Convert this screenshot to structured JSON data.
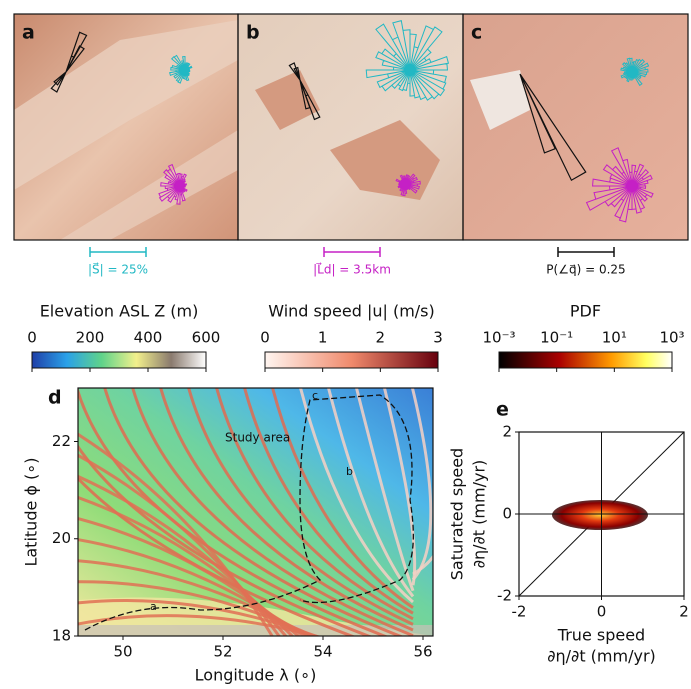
{
  "photo_panels": [
    {
      "label": "a"
    },
    {
      "label": "b"
    },
    {
      "label": "c"
    }
  ],
  "scale_bars": [
    "|S⃗| = 25%",
    "|L⃗d| = 3.5km",
    "P(∠q⃗) = 0.25"
  ],
  "colorbars": [
    {
      "title": "Elevation ASL Z (m)",
      "lim": [
        0,
        600
      ],
      "ticks": [
        0,
        200,
        400,
        600
      ]
    },
    {
      "title": "Wind speed |u| (m/s)",
      "lim": [
        0,
        3
      ],
      "ticks": [
        0,
        1,
        2,
        3
      ]
    },
    {
      "title": "PDF",
      "log": true,
      "lim": [
        0.001,
        1000
      ],
      "ticks": [
        {
          "value": 0.001,
          "label": "10⁻³"
        },
        {
          "value": 0.1,
          "label": "10⁻¹"
        },
        {
          "value": 10,
          "label": "10¹"
        },
        {
          "value": 1000,
          "label": "10³"
        }
      ]
    }
  ],
  "map_panel": {
    "label": "d",
    "xlabel": "Longitude λ (∘)",
    "ylabel": "Latitude ϕ (∘)",
    "xlim": [
      49.1,
      56.2
    ],
    "ylim": [
      18,
      23.1
    ],
    "xticks": [
      50,
      52,
      54,
      56
    ],
    "yticks": [
      18,
      20,
      22
    ],
    "annotations": [
      "Study area",
      "a",
      "b",
      "c"
    ]
  },
  "scatter_panel": {
    "label": "e",
    "xlabel": [
      "True speed",
      "∂η/∂t (mm/yr)"
    ],
    "ylabel": [
      "Saturated speed",
      "∂η/∂t (mm/yr)"
    ],
    "xlim": [
      -2,
      2
    ],
    "ylim": [
      -2,
      2
    ],
    "xticks": [
      -2,
      0,
      2
    ],
    "yticks": [
      -2,
      0,
      2
    ]
  }
}
